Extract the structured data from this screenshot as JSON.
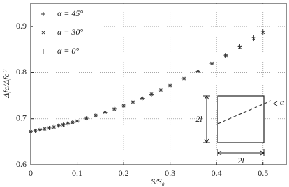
{
  "chart_data": {
    "type": "scatter",
    "xlabel": "S/S₀",
    "ylabel": "Δfc/Δfc⁰",
    "x": [
      0,
      0.01,
      0.02,
      0.03,
      0.04,
      0.05,
      0.06,
      0.07,
      0.08,
      0.09,
      0.1,
      0.12,
      0.14,
      0.16,
      0.18,
      0.2,
      0.22,
      0.24,
      0.26,
      0.28,
      0.3,
      0.33,
      0.36,
      0.39,
      0.42,
      0.45,
      0.48,
      0.5
    ],
    "series": [
      {
        "name": "α = 45°",
        "marker": "+",
        "color": "#333333",
        "values": [
          0.672,
          0.674,
          0.676,
          0.678,
          0.68,
          0.682,
          0.685,
          0.687,
          0.69,
          0.692,
          0.695,
          0.701,
          0.707,
          0.714,
          0.721,
          0.728,
          0.736,
          0.744,
          0.753,
          0.762,
          0.772,
          0.787,
          0.803,
          0.82,
          0.838,
          0.857,
          0.876,
          0.89
        ]
      },
      {
        "name": "α = 30°",
        "marker": "x",
        "color": "#333333",
        "values": [
          0.672,
          0.674,
          0.676,
          0.678,
          0.68,
          0.682,
          0.685,
          0.687,
          0.69,
          0.692,
          0.695,
          0.701,
          0.707,
          0.714,
          0.721,
          0.728,
          0.736,
          0.744,
          0.753,
          0.762,
          0.772,
          0.787,
          0.803,
          0.82,
          0.837,
          0.855,
          0.874,
          0.887
        ]
      },
      {
        "name": "α = 0°",
        "marker": "|",
        "color": "#333333",
        "values": [
          0.672,
          0.674,
          0.676,
          0.678,
          0.68,
          0.682,
          0.685,
          0.687,
          0.69,
          0.692,
          0.695,
          0.701,
          0.707,
          0.714,
          0.721,
          0.728,
          0.736,
          0.744,
          0.753,
          0.762,
          0.772,
          0.787,
          0.803,
          0.82,
          0.837,
          0.855,
          0.873,
          0.885
        ]
      }
    ],
    "xlim": [
      0,
      0.55
    ],
    "xticks": [
      0,
      0.1,
      0.2,
      0.3,
      0.4,
      0.5
    ],
    "ylim": [
      0.6,
      0.95
    ],
    "yticks": [
      0.6,
      0.7,
      0.8,
      0.9
    ],
    "grid": true,
    "legend": "upper left",
    "inset_labels": {
      "height": "2l",
      "width": "2l",
      "angle": "α"
    }
  }
}
